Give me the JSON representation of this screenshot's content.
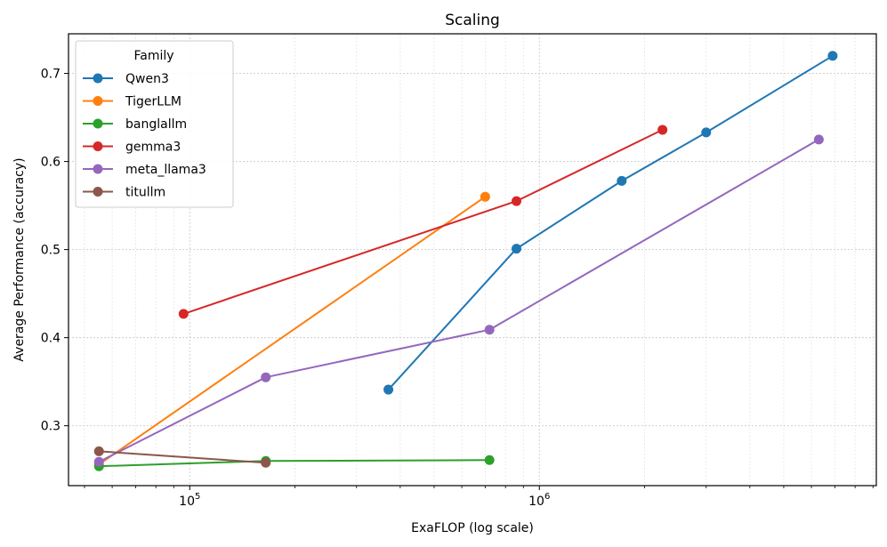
{
  "chart_data": {
    "type": "line",
    "title": "Scaling",
    "xlabel": "ExaFLOP (log scale)",
    "ylabel": "Average Performance (accuracy)",
    "xscale": "log",
    "xlim": [
      45000,
      9200000
    ],
    "ylim": [
      0.232,
      0.745
    ],
    "xticks": [
      {
        "value": 100000,
        "base": "10",
        "exp": "5"
      },
      {
        "value": 1000000,
        "base": "10",
        "exp": "6"
      }
    ],
    "yticks": [
      {
        "value": 0.3,
        "label": "0.3"
      },
      {
        "value": 0.4,
        "label": "0.4"
      },
      {
        "value": 0.5,
        "label": "0.5"
      },
      {
        "value": 0.6,
        "label": "0.6"
      },
      {
        "value": 0.7,
        "label": "0.7"
      }
    ],
    "grid": true,
    "legend": {
      "title": "Family",
      "position": "top-left"
    },
    "series": [
      {
        "name": "Qwen3",
        "color": "#1f77b4",
        "x": [
          370000,
          860000,
          1720000,
          3000000,
          6900000
        ],
        "y": [
          0.341,
          0.501,
          0.578,
          0.633,
          0.72
        ]
      },
      {
        "name": "TigerLLM",
        "color": "#ff7f0e",
        "x": [
          55000,
          700000
        ],
        "y": [
          0.256,
          0.56
        ]
      },
      {
        "name": "banglallm",
        "color": "#2ca02c",
        "x": [
          55000,
          165000,
          720000
        ],
        "y": [
          0.254,
          0.26,
          0.261
        ]
      },
      {
        "name": "gemma3",
        "color": "#d62728",
        "x": [
          96000,
          860000,
          2250000
        ],
        "y": [
          0.427,
          0.555,
          0.636
        ]
      },
      {
        "name": "meta_llama3",
        "color": "#9467bd",
        "x": [
          55000,
          165000,
          720000,
          6300000
        ],
        "y": [
          0.259,
          0.355,
          0.409,
          0.625
        ]
      },
      {
        "name": "titullm",
        "color": "#8c564b",
        "x": [
          55000,
          165000
        ],
        "y": [
          0.271,
          0.258
        ]
      }
    ]
  }
}
